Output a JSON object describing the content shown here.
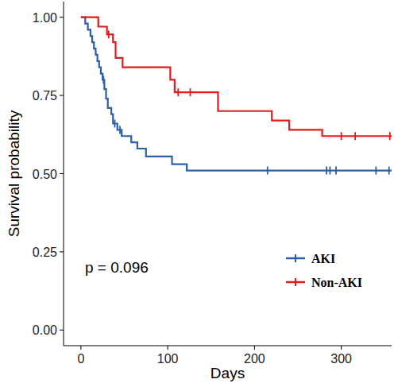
{
  "chart_data": {
    "type": "survival",
    "x_label": "Days",
    "y_label": "Survival probability",
    "annotations": [
      {
        "text": "p = 0.096"
      }
    ],
    "xlim": [
      -20,
      358
    ],
    "ylim": [
      -0.05,
      1.05
    ],
    "xticks": [
      0,
      100,
      200,
      300
    ],
    "yticks": [
      {
        "value": 0,
        "label": "0.00"
      },
      {
        "value": 0.25,
        "label": "0.25"
      },
      {
        "value": 0.5,
        "label": "0.50"
      },
      {
        "value": 0.75,
        "label": "0.75"
      },
      {
        "value": 1,
        "label": "1.00"
      }
    ],
    "grid": false,
    "legend": "bottom-right",
    "series": [
      {
        "name": "AKI",
        "color": "#2b5fa8",
        "line_style": "step",
        "x": [
          0,
          5,
          8,
          11,
          13,
          15,
          17,
          19,
          21,
          23,
          25,
          27,
          29,
          31,
          35,
          37,
          42,
          47,
          58,
          65,
          75,
          105,
          122,
          358
        ],
        "values": [
          1,
          0.98,
          0.96,
          0.94,
          0.92,
          0.9,
          0.88,
          0.86,
          0.84,
          0.82,
          0.8,
          0.77,
          0.74,
          0.71,
          0.69,
          0.66,
          0.64,
          0.62,
          0.6,
          0.58,
          0.555,
          0.53,
          0.51,
          0.51
        ],
        "censor_x": [
          26,
          39,
          45,
          215,
          283,
          287,
          294,
          340,
          355
        ],
        "censor_y": [
          0.8,
          0.66,
          0.64,
          0.51,
          0.51,
          0.51,
          0.51,
          0.51,
          0.51
        ]
      },
      {
        "name": "Non-AKI",
        "color": "#e41a1c",
        "line_style": "step",
        "x": [
          0,
          20,
          30,
          37,
          40,
          48,
          103,
          108,
          158,
          220,
          240,
          278,
          358
        ],
        "values": [
          1,
          0.97,
          0.945,
          0.92,
          0.87,
          0.84,
          0.8,
          0.76,
          0.7,
          0.67,
          0.64,
          0.62,
          0.62
        ],
        "censor_x": [
          32,
          112,
          126,
          300,
          316,
          356
        ],
        "censor_y": [
          0.945,
          0.76,
          0.76,
          0.62,
          0.62,
          0.62
        ]
      }
    ]
  }
}
